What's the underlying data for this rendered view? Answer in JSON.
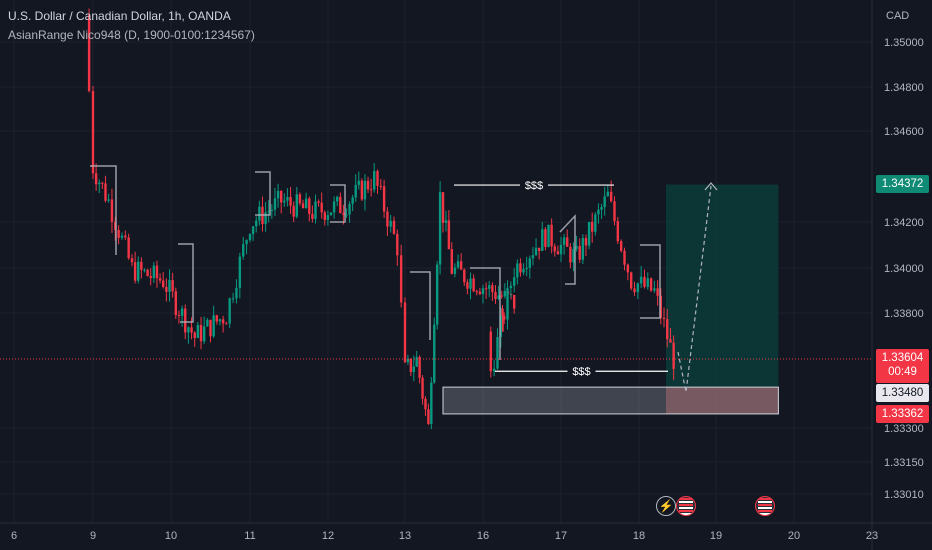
{
  "header": {
    "title": "U.S. Dollar / Canadian Dollar, 1h, OANDA",
    "indicator": "AsianRange Nico948 (D, 1900-0100:1234567)"
  },
  "price_badges": {
    "take_profit": "1.34372",
    "current_price": "1.33604",
    "countdown": "00:49",
    "entry": "1.33480",
    "stop_loss": "1.33362"
  },
  "events": {
    "bolt_icon": "lightning-icon",
    "flag_icon": "us-flag-icon"
  },
  "colors": {
    "background": "#131722",
    "up": "#089981",
    "down": "#f23645",
    "profit_zone": "#0c3a37",
    "loss_zone": "#6b3b42",
    "grid": "#1e222d"
  },
  "chart_data": {
    "type": "candlestick",
    "currency": "CAD",
    "title": "U.S. Dollar / Canadian Dollar, 1h, OANDA",
    "x_ticks": [
      "6",
      "9",
      "10",
      "11",
      "12",
      "13",
      "16",
      "17",
      "18",
      "19",
      "20",
      "23"
    ],
    "y_ticks": [
      "1.35000",
      "1.34800",
      "1.34600",
      "1.34200",
      "1.34000",
      "1.33800",
      "1.33300",
      "1.33150",
      "1.33010"
    ],
    "ylim": [
      1.3295,
      1.3512
    ],
    "price_path": [
      {
        "x": "8.9",
        "price": 1.3512
      },
      {
        "x": "9.0",
        "price": 1.3445
      },
      {
        "x": "9.2",
        "price": 1.343
      },
      {
        "x": "9.5",
        "price": 1.34
      },
      {
        "x": "9.9",
        "price": 1.3395
      },
      {
        "x": "10.3",
        "price": 1.337
      },
      {
        "x": "10.7",
        "price": 1.338
      },
      {
        "x": "11.0",
        "price": 1.342
      },
      {
        "x": "11.4",
        "price": 1.343
      },
      {
        "x": "11.8",
        "price": 1.3425
      },
      {
        "x": "12.2",
        "price": 1.3428
      },
      {
        "x": "12.6",
        "price": 1.344
      },
      {
        "x": "12.9",
        "price": 1.341
      },
      {
        "x": "13.0",
        "price": 1.3355
      },
      {
        "x": "13.3",
        "price": 1.336
      },
      {
        "x": "13.6",
        "price": 1.333
      },
      {
        "x": "13.9",
        "price": 1.3432
      },
      {
        "x": "14.2",
        "price": 1.34
      },
      {
        "x": "15.8",
        "price": 1.3385
      },
      {
        "x": "16.1",
        "price": 1.3355
      },
      {
        "x": "16.4",
        "price": 1.34
      },
      {
        "x": "16.8",
        "price": 1.3415
      },
      {
        "x": "17.2",
        "price": 1.3405
      },
      {
        "x": "17.6",
        "price": 1.3432
      },
      {
        "x": "17.9",
        "price": 1.3395
      },
      {
        "x": "18.2",
        "price": 1.339
      },
      {
        "x": "18.45",
        "price": 1.33604
      }
    ],
    "annotations": [
      {
        "label": "$$$",
        "level": 1.3437,
        "x_from": "15.8",
        "x_to": "17.6"
      },
      {
        "label": "$$$",
        "level": 1.3355,
        "x_from": "16.1",
        "x_to": "18.3"
      }
    ],
    "position": {
      "type": "long",
      "entry": 1.3348,
      "take_profit": 1.34372,
      "stop_loss": 1.33362,
      "x_from": "18.35",
      "x_to": "19.8"
    },
    "entry_zone": {
      "low": 1.33362,
      "high": 1.3348,
      "x_from": "15.4",
      "x_to": "19.8"
    },
    "current_price": 1.33604,
    "projection": [
      {
        "x": "18.45",
        "price": 1.33604
      },
      {
        "x": "18.6",
        "price": 1.335
      },
      {
        "x": "18.95",
        "price": 1.34372
      }
    ]
  }
}
